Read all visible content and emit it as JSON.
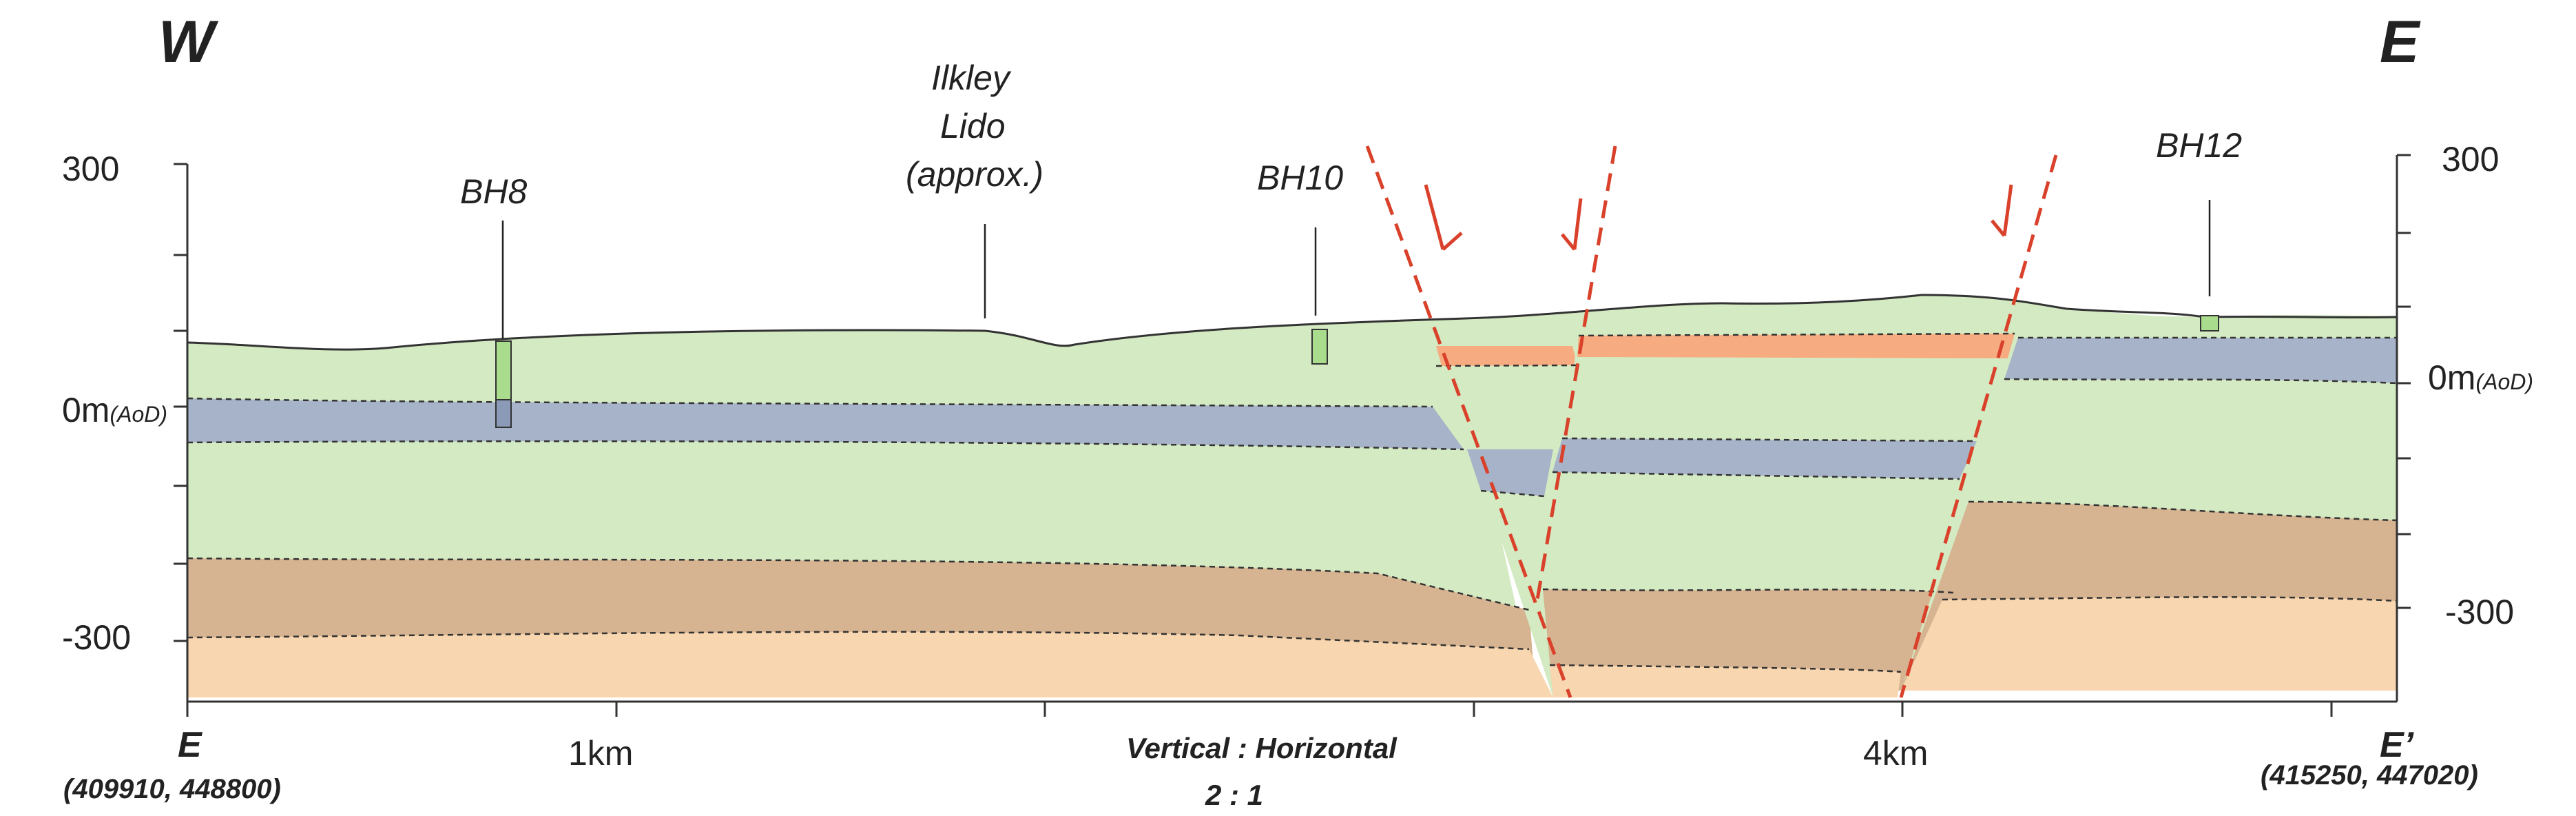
{
  "header": {
    "west_label": "W",
    "east_label": "E"
  },
  "axes": {
    "left_ticks": [
      "300",
      "0m",
      "-300"
    ],
    "right_ticks": [
      "300",
      "0m",
      "-300"
    ],
    "datum_suffix": "(AoD)",
    "bottom_ticks": [
      "1km",
      "4km"
    ]
  },
  "section_ends": {
    "start_label": "E",
    "start_coords": "(409910, 448800)",
    "end_label": "E’",
    "end_coords": "(415250, 447020)"
  },
  "scale_note": {
    "line1": "Vertical : Horizontal",
    "line2": "2 : 1"
  },
  "annotations": {
    "bh8": "BH8",
    "lido_line1": "Ilkley",
    "lido_line2": "Lido",
    "lido_line3": "(approx.)",
    "bh10": "BH10",
    "bh12": "BH12"
  },
  "colors": {
    "green": "#d4eac2",
    "blue": "#a7b3c8",
    "brown": "#d6b391",
    "peach": "#f8d6af",
    "orange": "#f7ab80",
    "fault": "#d9412b"
  }
}
